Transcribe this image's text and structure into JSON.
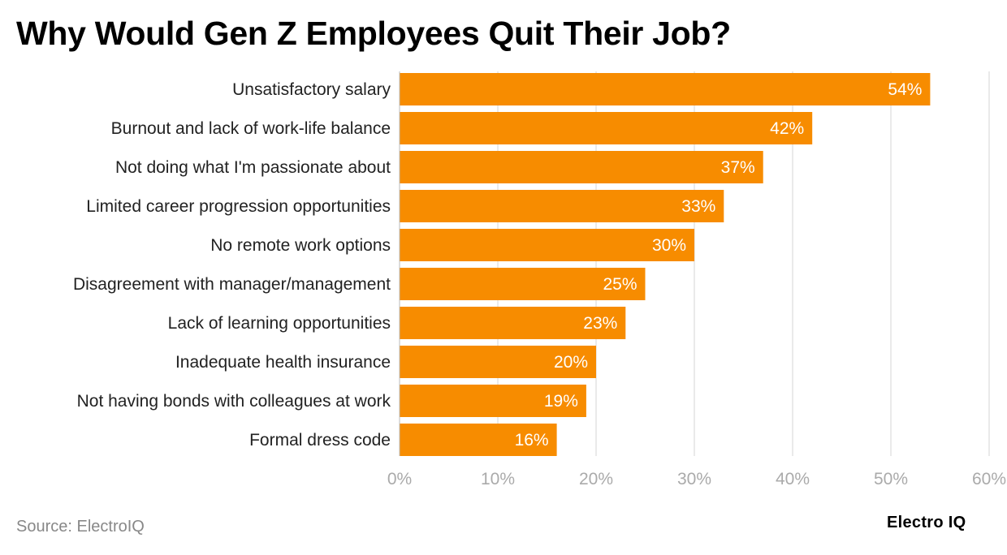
{
  "title": "Why Would Gen Z Employees Quit Their Job?",
  "source": "Source: ElectroIQ",
  "brand": "Electro IQ",
  "colors": {
    "bar": "#F78C00",
    "bar_label": "#FFFFFF",
    "grid": "#E3E3E3",
    "tick_label": "#AAAAAA",
    "category_label": "#222222"
  },
  "chart_data": {
    "type": "bar",
    "orientation": "horizontal",
    "categories": [
      "Unsatisfactory salary",
      "Burnout and lack of work-life balance",
      "Not doing what I'm passionate about",
      "Limited career progression opportunities",
      "No remote work options",
      "Disagreement with manager/management",
      "Lack of learning opportunities",
      "Inadequate health insurance",
      "Not having bonds with colleagues at work",
      "Formal dress code"
    ],
    "values": [
      54,
      42,
      37,
      33,
      30,
      25,
      23,
      20,
      19,
      16
    ],
    "value_labels": [
      "54%",
      "42%",
      "37%",
      "33%",
      "30%",
      "25%",
      "23%",
      "20%",
      "19%",
      "16%"
    ],
    "x_ticks": [
      0,
      10,
      20,
      30,
      40,
      50,
      60
    ],
    "x_tick_labels": [
      "0%",
      "10%",
      "20%",
      "30%",
      "40%",
      "50%",
      "60%"
    ],
    "xlim": [
      0,
      60
    ],
    "grid": true
  }
}
